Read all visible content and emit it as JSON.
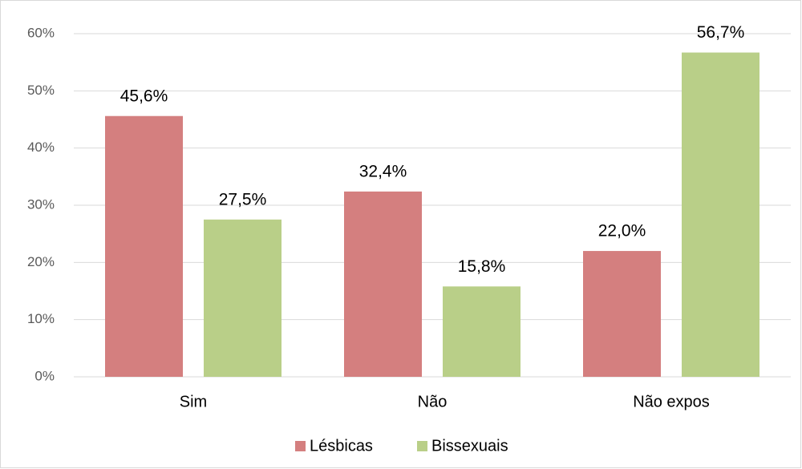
{
  "chart_data": {
    "type": "bar",
    "categories": [
      "Sim",
      "Não",
      "Não expos"
    ],
    "series": [
      {
        "name": "Lésbicas",
        "color": "#d47f7f",
        "values": [
          45.6,
          32.4,
          22.0
        ],
        "value_labels": [
          "45,6%",
          "32,4%",
          "22,0%"
        ]
      },
      {
        "name": "Bissexuais",
        "color": "#b9cf88",
        "values": [
          27.5,
          15.8,
          56.7
        ],
        "value_labels": [
          "27,5%",
          "15,8%",
          "56,7%"
        ]
      }
    ],
    "ylim": [
      0,
      60
    ],
    "yticks": [
      {
        "value": 0,
        "label": "0%"
      },
      {
        "value": 10,
        "label": "10%"
      },
      {
        "value": 20,
        "label": "20%"
      },
      {
        "value": 30,
        "label": "30%"
      },
      {
        "value": 40,
        "label": "40%"
      },
      {
        "value": 50,
        "label": "50%"
      },
      {
        "value": 60,
        "label": "60%"
      }
    ],
    "grid": true,
    "legend": "bottom"
  }
}
